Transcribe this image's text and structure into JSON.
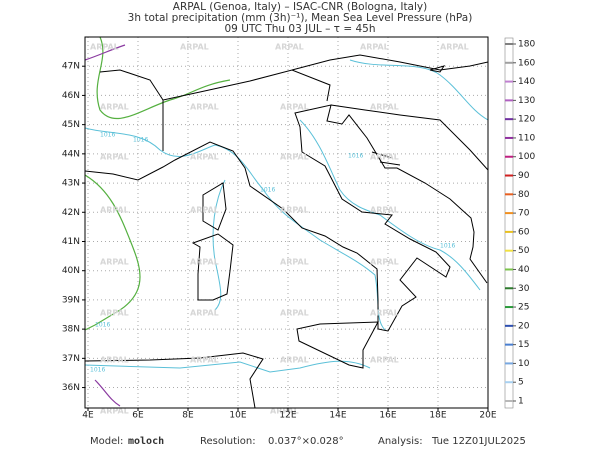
{
  "header": {
    "line1": "ARPAL (Genoa, Italy)  –  ISAC-CNR (Bologna, Italy)",
    "line2": "3h total precipitation (mm (3h)⁻¹), Mean Sea Level Pressure (hPa)",
    "line3": "09 UTC Thu 03 JUL  –  τ = 45h"
  },
  "map": {
    "xlim": [
      3.88,
      20
    ],
    "ylim": [
      35.3,
      48.0
    ],
    "grid": true,
    "xticks": [
      {
        "value": 4,
        "label": "4E"
      },
      {
        "value": 6,
        "label": "6E"
      },
      {
        "value": 8,
        "label": "8E"
      },
      {
        "value": 10,
        "label": "10E"
      },
      {
        "value": 12,
        "label": "12E"
      },
      {
        "value": 14,
        "label": "14E"
      },
      {
        "value": 16,
        "label": "16E"
      },
      {
        "value": 18,
        "label": "18E"
      },
      {
        "value": 20,
        "label": "20E"
      }
    ],
    "yticks": [
      {
        "value": 36,
        "label": "36N"
      },
      {
        "value": 37,
        "label": "37N"
      },
      {
        "value": 38,
        "label": "38N"
      },
      {
        "value": 39,
        "label": "39N"
      },
      {
        "value": 40,
        "label": "40N"
      },
      {
        "value": 41,
        "label": "41N"
      },
      {
        "value": 42,
        "label": "42N"
      },
      {
        "value": 43,
        "label": "43N"
      },
      {
        "value": 44,
        "label": "44N"
      },
      {
        "value": 45,
        "label": "45N"
      },
      {
        "value": 46,
        "label": "46N"
      },
      {
        "value": 47,
        "label": "47N"
      }
    ],
    "watermark": "ARPAL",
    "isobar_label": "1016"
  },
  "colorbar": {
    "levels": [
      1,
      5,
      10,
      15,
      20,
      25,
      30,
      40,
      50,
      60,
      70,
      80,
      90,
      100,
      110,
      120,
      130,
      140,
      160,
      180
    ],
    "colors": [
      "#b8b8b8",
      "#a8d0f0",
      "#78a8e0",
      "#4a7fd0",
      "#2d4fb0",
      "#2a9a3a",
      "#2d7a2d",
      "#7cc44c",
      "#f0e040",
      "#e8c020",
      "#f09020",
      "#e86020",
      "#d02020",
      "#c02080",
      "#9030a0",
      "#7030a0",
      "#b060c0",
      "#c080d0",
      "#a0a0a0",
      "#808080"
    ]
  },
  "footer": {
    "model_label": "Model:",
    "model": "moloch",
    "resolution_label": "Resolution:",
    "resolution": "0.037°×0.028°",
    "analysis_label": "Analysis:",
    "analysis": "Tue 12Z01JUL2025"
  }
}
